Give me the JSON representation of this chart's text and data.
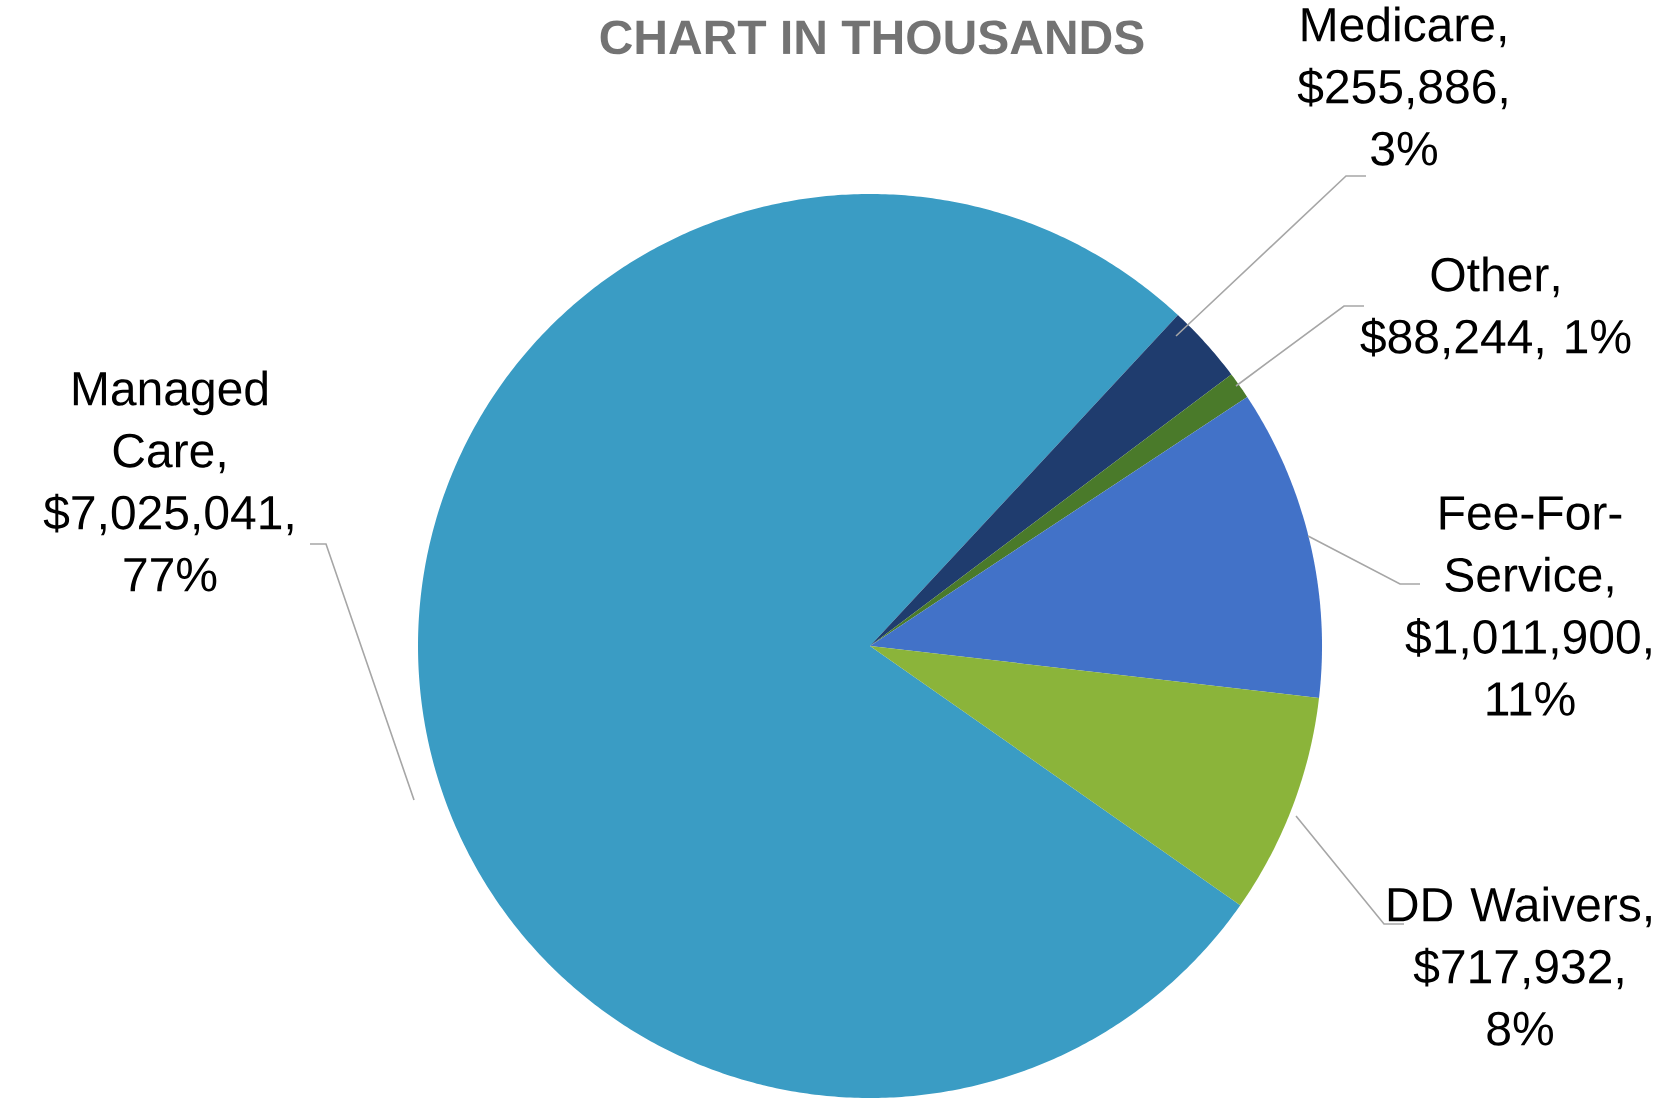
{
  "chart_data": {
    "type": "pie",
    "title": "CHART IN THOUSANDS",
    "categories": [
      "Managed Care",
      "Medicare",
      "Other",
      "Fee-For-Service",
      "DD Waivers"
    ],
    "values": [
      7025041,
      255886,
      88244,
      1011900,
      717932
    ],
    "value_labels": [
      ", $7,025,041, 77%",
      ", $255,886, 3%",
      ", $88,244, 1%",
      ", $1,011,900, 11%",
      ", $717,932, 8%"
    ],
    "colors": [
      "#3a9cc4",
      "#1f3c6e",
      "#4a7a2a",
      "#4272c8",
      "#8bb43a"
    ]
  }
}
